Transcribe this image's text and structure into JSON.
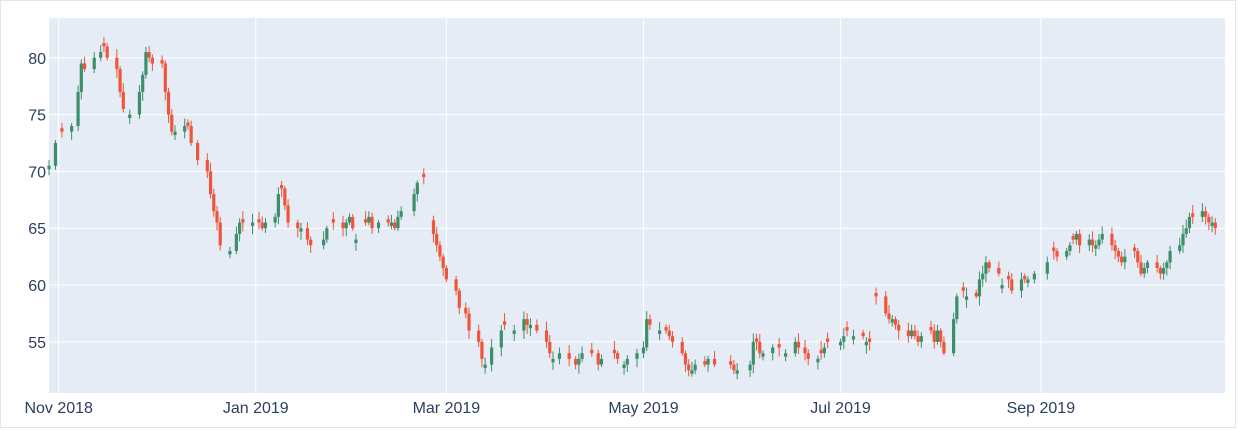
{
  "colors": {
    "increasing": "#3d8f6a",
    "decreasing": "#ef553b",
    "plot_bg": "#e5ecf6",
    "grid": "#ffffff",
    "tick_text": "#2a3f5f"
  },
  "chart_data": {
    "type": "candlestick",
    "title": "",
    "xlabel": "",
    "ylabel": "",
    "x_range": [
      "2018-10-29",
      "2019-10-28"
    ],
    "ylim": [
      50.5,
      83.5
    ],
    "y_ticks": [
      55,
      60,
      65,
      70,
      75,
      80
    ],
    "y_tick_labels": [
      "55",
      "60",
      "65",
      "70",
      "75",
      "80"
    ],
    "x_ticks": [
      "2018-11-01",
      "2019-01-01",
      "2019-03-01",
      "2019-05-01",
      "2019-07-01",
      "2019-09-01"
    ],
    "x_tick_labels": [
      "Nov 2018",
      "Jan 2019",
      "Mar 2019",
      "May 2019",
      "Jul 2019",
      "Sep 2019"
    ],
    "grid": true,
    "legend": "none",
    "key_points": [
      [
        "2018-10-29",
        70.5,
        "up"
      ],
      [
        "2018-10-31",
        72.5,
        "up"
      ],
      [
        "2018-11-02",
        73.5,
        "down"
      ],
      [
        "2018-11-05",
        74.0,
        "up"
      ],
      [
        "2018-11-07",
        77.0,
        "up"
      ],
      [
        "2018-11-08",
        79.5,
        "up"
      ],
      [
        "2018-11-09",
        79.0,
        "down"
      ],
      [
        "2018-11-12",
        80.0,
        "up"
      ],
      [
        "2018-11-14",
        80.5,
        "up"
      ],
      [
        "2018-11-15",
        81.0,
        "down"
      ],
      [
        "2018-11-16",
        80.0,
        "down"
      ],
      [
        "2018-11-19",
        79.0,
        "down"
      ],
      [
        "2018-11-20",
        77.0,
        "down"
      ],
      [
        "2018-11-21",
        75.5,
        "down"
      ],
      [
        "2018-11-23",
        75.0,
        "up"
      ],
      [
        "2018-11-26",
        77.0,
        "up"
      ],
      [
        "2018-11-27",
        78.5,
        "up"
      ],
      [
        "2018-11-28",
        80.5,
        "up"
      ],
      [
        "2018-11-29",
        80.0,
        "down"
      ],
      [
        "2018-11-30",
        79.5,
        "down"
      ],
      [
        "2018-12-03",
        79.5,
        "down"
      ],
      [
        "2018-12-04",
        77.0,
        "down"
      ],
      [
        "2018-12-05",
        75.0,
        "down"
      ],
      [
        "2018-12-06",
        73.5,
        "down"
      ],
      [
        "2018-12-07",
        73.5,
        "up"
      ],
      [
        "2018-12-10",
        74.0,
        "up"
      ],
      [
        "2018-12-11",
        74.0,
        "down"
      ],
      [
        "2018-12-12",
        72.5,
        "down"
      ],
      [
        "2018-12-14",
        71.0,
        "down"
      ],
      [
        "2018-12-17",
        70.0,
        "down"
      ],
      [
        "2018-12-18",
        68.0,
        "down"
      ],
      [
        "2018-12-19",
        66.5,
        "down"
      ],
      [
        "2018-12-20",
        65.5,
        "down"
      ],
      [
        "2018-12-21",
        63.5,
        "down"
      ],
      [
        "2018-12-24",
        63.0,
        "up"
      ],
      [
        "2018-12-26",
        64.5,
        "up"
      ],
      [
        "2018-12-27",
        65.5,
        "up"
      ],
      [
        "2018-12-28",
        65.5,
        "down"
      ],
      [
        "2018-12-31",
        65.5,
        "up"
      ],
      [
        "2019-01-02",
        65.5,
        "down"
      ],
      [
        "2019-01-03",
        65.0,
        "down"
      ],
      [
        "2019-01-04",
        65.5,
        "up"
      ],
      [
        "2019-01-07",
        66.0,
        "up"
      ],
      [
        "2019-01-08",
        68.0,
        "up"
      ],
      [
        "2019-01-09",
        68.5,
        "down"
      ],
      [
        "2019-01-10",
        67.0,
        "down"
      ],
      [
        "2019-01-11",
        65.5,
        "down"
      ],
      [
        "2019-01-14",
        65.0,
        "down"
      ],
      [
        "2019-01-15",
        65.0,
        "up"
      ],
      [
        "2019-01-17",
        64.0,
        "down"
      ],
      [
        "2019-01-18",
        63.5,
        "down"
      ],
      [
        "2019-01-22",
        64.0,
        "up"
      ],
      [
        "2019-01-23",
        65.0,
        "up"
      ],
      [
        "2019-01-25",
        65.5,
        "down"
      ],
      [
        "2019-01-28",
        65.0,
        "down"
      ],
      [
        "2019-01-29",
        65.5,
        "up"
      ],
      [
        "2019-01-30",
        66.0,
        "up"
      ],
      [
        "2019-01-31",
        65.0,
        "down"
      ],
      [
        "2019-02-01",
        64.0,
        "up"
      ],
      [
        "2019-02-04",
        65.5,
        "down"
      ],
      [
        "2019-02-05",
        66.0,
        "up"
      ],
      [
        "2019-02-06",
        65.0,
        "down"
      ],
      [
        "2019-02-08",
        65.5,
        "up"
      ],
      [
        "2019-02-11",
        65.5,
        "down"
      ],
      [
        "2019-02-12",
        65.5,
        "up"
      ],
      [
        "2019-02-13",
        65.0,
        "down"
      ],
      [
        "2019-02-14",
        66.0,
        "up"
      ],
      [
        "2019-02-15",
        66.5,
        "up"
      ],
      [
        "2019-02-19",
        68.0,
        "up"
      ],
      [
        "2019-02-20",
        69.0,
        "up"
      ],
      [
        "2019-02-22",
        69.5,
        "down"
      ],
      [
        "2019-02-25",
        64.5,
        "down"
      ],
      [
        "2019-02-26",
        63.5,
        "down"
      ],
      [
        "2019-02-27",
        62.5,
        "down"
      ],
      [
        "2019-02-28",
        61.5,
        "down"
      ],
      [
        "2019-03-01",
        60.5,
        "down"
      ],
      [
        "2019-03-04",
        59.5,
        "down"
      ],
      [
        "2019-03-05",
        58.0,
        "down"
      ],
      [
        "2019-03-07",
        57.5,
        "down"
      ],
      [
        "2019-03-08",
        56.0,
        "down"
      ],
      [
        "2019-03-11",
        55.0,
        "down"
      ],
      [
        "2019-03-12",
        53.5,
        "down"
      ],
      [
        "2019-03-13",
        53.0,
        "up"
      ],
      [
        "2019-03-15",
        54.5,
        "up"
      ],
      [
        "2019-03-18",
        56.0,
        "up"
      ],
      [
        "2019-03-19",
        56.5,
        "down"
      ],
      [
        "2019-03-22",
        56.0,
        "up"
      ],
      [
        "2019-03-25",
        57.0,
        "up"
      ],
      [
        "2019-03-26",
        56.5,
        "down"
      ],
      [
        "2019-03-27",
        56.5,
        "up"
      ],
      [
        "2019-03-29",
        56.0,
        "down"
      ],
      [
        "2019-04-01",
        55.0,
        "down"
      ],
      [
        "2019-04-02",
        54.0,
        "down"
      ],
      [
        "2019-04-03",
        53.5,
        "up"
      ],
      [
        "2019-04-05",
        54.0,
        "up"
      ],
      [
        "2019-04-08",
        53.5,
        "down"
      ],
      [
        "2019-04-10",
        53.0,
        "down"
      ],
      [
        "2019-04-11",
        53.5,
        "up"
      ],
      [
        "2019-04-12",
        54.0,
        "up"
      ],
      [
        "2019-04-15",
        54.0,
        "down"
      ],
      [
        "2019-04-17",
        53.0,
        "down"
      ],
      [
        "2019-04-18",
        53.5,
        "up"
      ],
      [
        "2019-04-22",
        54.0,
        "down"
      ],
      [
        "2019-04-23",
        53.5,
        "down"
      ],
      [
        "2019-04-25",
        53.0,
        "up"
      ],
      [
        "2019-04-26",
        53.5,
        "up"
      ],
      [
        "2019-04-29",
        54.0,
        "up"
      ],
      [
        "2019-05-01",
        54.5,
        "up"
      ],
      [
        "2019-05-02",
        57.0,
        "up"
      ],
      [
        "2019-05-03",
        56.5,
        "down"
      ],
      [
        "2019-05-06",
        56.0,
        "up"
      ],
      [
        "2019-05-08",
        56.0,
        "down"
      ],
      [
        "2019-05-09",
        55.5,
        "down"
      ],
      [
        "2019-05-10",
        55.0,
        "down"
      ],
      [
        "2019-05-13",
        54.0,
        "down"
      ],
      [
        "2019-05-14",
        53.0,
        "down"
      ],
      [
        "2019-05-15",
        52.5,
        "down"
      ],
      [
        "2019-05-16",
        52.5,
        "up"
      ],
      [
        "2019-05-17",
        53.0,
        "up"
      ],
      [
        "2019-05-20",
        53.0,
        "down"
      ],
      [
        "2019-05-21",
        53.5,
        "up"
      ],
      [
        "2019-05-23",
        53.0,
        "down"
      ],
      [
        "2019-05-28",
        53.0,
        "down"
      ],
      [
        "2019-05-29",
        52.5,
        "down"
      ],
      [
        "2019-05-30",
        52.5,
        "up"
      ],
      [
        "2019-06-03",
        53.0,
        "up"
      ],
      [
        "2019-06-04",
        55.0,
        "up"
      ],
      [
        "2019-06-05",
        55.0,
        "down"
      ],
      [
        "2019-06-06",
        54.0,
        "down"
      ],
      [
        "2019-06-07",
        54.0,
        "up"
      ],
      [
        "2019-06-10",
        54.5,
        "up"
      ],
      [
        "2019-06-12",
        54.5,
        "down"
      ],
      [
        "2019-06-14",
        54.0,
        "up"
      ],
      [
        "2019-06-17",
        55.0,
        "up"
      ],
      [
        "2019-06-18",
        54.5,
        "down"
      ],
      [
        "2019-06-20",
        54.0,
        "down"
      ],
      [
        "2019-06-21",
        53.5,
        "down"
      ],
      [
        "2019-06-24",
        53.5,
        "up"
      ],
      [
        "2019-06-25",
        54.0,
        "down"
      ],
      [
        "2019-06-26",
        54.5,
        "up"
      ],
      [
        "2019-06-27",
        55.0,
        "down"
      ],
      [
        "2019-07-01",
        55.0,
        "up"
      ],
      [
        "2019-07-02",
        55.5,
        "up"
      ],
      [
        "2019-07-03",
        56.0,
        "down"
      ],
      [
        "2019-07-05",
        55.5,
        "up"
      ],
      [
        "2019-07-08",
        55.5,
        "down"
      ],
      [
        "2019-07-09",
        55.0,
        "up"
      ],
      [
        "2019-07-10",
        55.0,
        "down"
      ],
      [
        "2019-07-12",
        59.0,
        "down"
      ],
      [
        "2019-07-15",
        57.5,
        "down"
      ],
      [
        "2019-07-16",
        57.0,
        "down"
      ],
      [
        "2019-07-17",
        57.0,
        "up"
      ],
      [
        "2019-07-18",
        56.5,
        "down"
      ],
      [
        "2019-07-19",
        56.0,
        "down"
      ],
      [
        "2019-07-22",
        55.5,
        "down"
      ],
      [
        "2019-07-23",
        56.0,
        "up"
      ],
      [
        "2019-07-24",
        55.5,
        "down"
      ],
      [
        "2019-07-25",
        55.0,
        "down"
      ],
      [
        "2019-07-26",
        55.5,
        "up"
      ],
      [
        "2019-07-29",
        56.0,
        "down"
      ],
      [
        "2019-07-30",
        55.0,
        "down"
      ],
      [
        "2019-07-31",
        56.0,
        "up"
      ],
      [
        "2019-08-01",
        55.0,
        "down"
      ],
      [
        "2019-08-02",
        54.0,
        "down"
      ],
      [
        "2019-08-05",
        57.0,
        "up"
      ],
      [
        "2019-08-06",
        59.0,
        "up"
      ],
      [
        "2019-08-08",
        59.5,
        "down"
      ],
      [
        "2019-08-09",
        59.0,
        "up"
      ],
      [
        "2019-08-12",
        59.0,
        "down"
      ],
      [
        "2019-08-13",
        60.5,
        "up"
      ],
      [
        "2019-08-14",
        61.0,
        "up"
      ],
      [
        "2019-08-15",
        62.0,
        "up"
      ],
      [
        "2019-08-16",
        61.5,
        "down"
      ],
      [
        "2019-08-19",
        61.0,
        "down"
      ],
      [
        "2019-08-20",
        60.0,
        "up"
      ],
      [
        "2019-08-22",
        60.5,
        "down"
      ],
      [
        "2019-08-23",
        59.5,
        "down"
      ],
      [
        "2019-08-26",
        60.5,
        "up"
      ],
      [
        "2019-08-27",
        60.5,
        "down"
      ],
      [
        "2019-08-28",
        60.5,
        "up"
      ],
      [
        "2019-08-30",
        61.0,
        "up"
      ],
      [
        "2019-09-03",
        62.0,
        "up"
      ],
      [
        "2019-09-05",
        63.0,
        "down"
      ],
      [
        "2019-09-06",
        62.5,
        "down"
      ],
      [
        "2019-09-09",
        63.0,
        "up"
      ],
      [
        "2019-09-10",
        63.5,
        "up"
      ],
      [
        "2019-09-11",
        64.0,
        "down"
      ],
      [
        "2019-09-12",
        64.5,
        "up"
      ],
      [
        "2019-09-13",
        63.5,
        "down"
      ],
      [
        "2019-09-16",
        64.0,
        "up"
      ],
      [
        "2019-09-17",
        63.5,
        "down"
      ],
      [
        "2019-09-18",
        63.5,
        "up"
      ],
      [
        "2019-09-19",
        64.0,
        "up"
      ],
      [
        "2019-09-20",
        64.5,
        "up"
      ],
      [
        "2019-09-23",
        63.5,
        "down"
      ],
      [
        "2019-09-24",
        63.0,
        "down"
      ],
      [
        "2019-09-25",
        62.5,
        "down"
      ],
      [
        "2019-09-26",
        62.0,
        "down"
      ],
      [
        "2019-09-27",
        62.5,
        "up"
      ],
      [
        "2019-09-30",
        63.0,
        "down"
      ],
      [
        "2019-10-01",
        62.0,
        "down"
      ],
      [
        "2019-10-02",
        61.0,
        "down"
      ],
      [
        "2019-10-03",
        61.5,
        "up"
      ],
      [
        "2019-10-04",
        62.0,
        "up"
      ],
      [
        "2019-10-07",
        61.5,
        "down"
      ],
      [
        "2019-10-08",
        61.0,
        "down"
      ],
      [
        "2019-10-09",
        61.5,
        "up"
      ],
      [
        "2019-10-10",
        62.0,
        "up"
      ],
      [
        "2019-10-11",
        63.0,
        "up"
      ],
      [
        "2019-10-14",
        63.5,
        "up"
      ],
      [
        "2019-10-15",
        64.5,
        "up"
      ],
      [
        "2019-10-16",
        65.0,
        "up"
      ],
      [
        "2019-10-17",
        66.0,
        "up"
      ],
      [
        "2019-10-18",
        66.0,
        "down"
      ],
      [
        "2019-10-21",
        66.5,
        "up"
      ],
      [
        "2019-10-22",
        66.0,
        "down"
      ],
      [
        "2019-10-23",
        65.5,
        "down"
      ],
      [
        "2019-10-24",
        65.5,
        "up"
      ],
      [
        "2019-10-25",
        65.0,
        "down"
      ]
    ]
  }
}
